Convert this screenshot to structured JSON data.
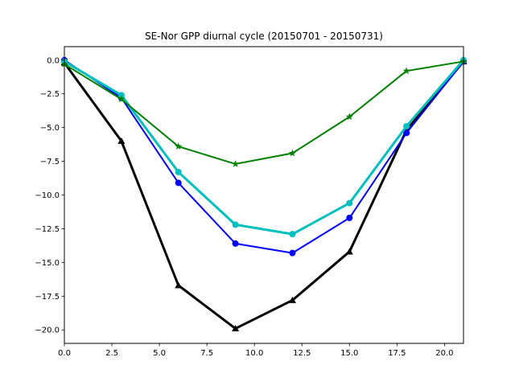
{
  "chart_data": {
    "type": "line",
    "title": "SE-Nor GPP diurnal cycle (20150701 - 20150731)",
    "xlabel": "",
    "ylabel": "",
    "xlim": [
      0,
      21
    ],
    "ylim": [
      -21.0,
      1.0
    ],
    "grid": false,
    "legend": "none",
    "x_ticks": [
      0.0,
      2.5,
      5.0,
      7.5,
      10.0,
      12.5,
      15.0,
      17.5,
      20.0
    ],
    "x_tick_labels": [
      "0.0",
      "2.5",
      "5.0",
      "7.5",
      "10.0",
      "12.5",
      "15.0",
      "17.5",
      "20.0"
    ],
    "y_ticks": [
      0.0,
      -2.5,
      -5.0,
      -7.5,
      -10.0,
      -12.5,
      -15.0,
      -17.5,
      -20.0
    ],
    "y_tick_labels": [
      "0.0",
      "−2.5",
      "−5.0",
      "−7.5",
      "−10.0",
      "−12.5",
      "−15.0",
      "−17.5",
      "−20.0"
    ],
    "x": [
      0,
      3,
      6,
      9,
      12,
      15,
      18,
      21
    ],
    "series": [
      {
        "color": "#000000",
        "marker": "triangle",
        "linewidth": 3,
        "values": [
          -0.2,
          -6.0,
          -16.7,
          -19.9,
          -17.8,
          -14.2,
          -5.2,
          -0.1
        ]
      },
      {
        "color": "#0000ff",
        "marker": "circle",
        "linewidth": 2,
        "values": [
          0.0,
          -2.8,
          -9.1,
          -13.6,
          -14.3,
          -11.7,
          -5.4,
          -0.1
        ]
      },
      {
        "color": "#00bfbf",
        "marker": "circle",
        "linewidth": 3,
        "values": [
          -0.1,
          -2.6,
          -8.3,
          -12.2,
          -12.9,
          -10.6,
          -4.9,
          0.0
        ]
      },
      {
        "color": "#008000",
        "marker": "star",
        "linewidth": 2,
        "values": [
          -0.3,
          -2.9,
          -6.4,
          -7.7,
          -6.9,
          -4.2,
          -0.8,
          -0.1
        ]
      }
    ]
  }
}
